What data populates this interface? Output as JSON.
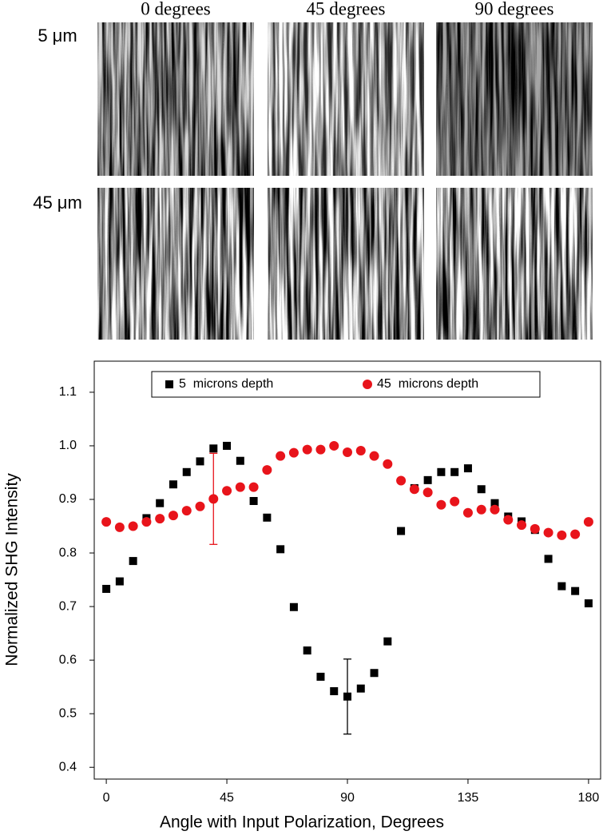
{
  "panels": {
    "columns": [
      "0 degrees",
      "45 degrees",
      "90 degrees"
    ],
    "rows": [
      "5 μm",
      "45 μm"
    ]
  },
  "chart_data": {
    "type": "scatter",
    "x_label": "Angle with Input Polarization, Degrees",
    "y_label": "Normalized SHG Intensity",
    "x": [
      0,
      5,
      10,
      15,
      20,
      25,
      30,
      35,
      40,
      45,
      50,
      55,
      60,
      65,
      70,
      75,
      80,
      85,
      90,
      95,
      100,
      105,
      110,
      115,
      120,
      125,
      130,
      135,
      140,
      145,
      150,
      155,
      160,
      165,
      170,
      175,
      180
    ],
    "series": [
      {
        "name": "5  microns depth",
        "color": "#000000",
        "marker": "square",
        "values": [
          0.733,
          0.747,
          0.785,
          0.865,
          0.893,
          0.928,
          0.951,
          0.971,
          0.995,
          1.0,
          0.972,
          0.897,
          0.866,
          0.807,
          0.699,
          0.618,
          0.569,
          0.542,
          0.532,
          0.547,
          0.576,
          0.635,
          0.841,
          0.921,
          0.936,
          0.951,
          0.951,
          0.958,
          0.919,
          0.893,
          0.868,
          0.859,
          0.843,
          0.789,
          0.738,
          0.729,
          0.706
        ],
        "errors": [
          null,
          null,
          null,
          null,
          null,
          null,
          null,
          null,
          null,
          null,
          null,
          null,
          null,
          null,
          null,
          null,
          null,
          null,
          0.07,
          null,
          null,
          null,
          null,
          null,
          null,
          null,
          null,
          null,
          null,
          null,
          null,
          null,
          null,
          null,
          null,
          null,
          null
        ]
      },
      {
        "name": "45  microns depth",
        "color": "#e8141b",
        "marker": "circle",
        "values": [
          0.858,
          0.848,
          0.85,
          0.858,
          0.864,
          0.87,
          0.879,
          0.887,
          0.901,
          0.916,
          0.923,
          0.923,
          0.955,
          0.981,
          0.987,
          0.993,
          0.993,
          1.0,
          0.988,
          0.991,
          0.981,
          0.966,
          0.935,
          0.919,
          0.913,
          0.89,
          0.896,
          0.875,
          0.881,
          0.881,
          0.862,
          0.852,
          0.845,
          0.838,
          0.833,
          0.835,
          0.858
        ],
        "errors": [
          null,
          null,
          null,
          null,
          null,
          null,
          null,
          null,
          0.085,
          null,
          null,
          null,
          null,
          null,
          null,
          null,
          null,
          null,
          null,
          null,
          null,
          null,
          null,
          null,
          null,
          null,
          null,
          null,
          null,
          null,
          null,
          null,
          null,
          null,
          null,
          null,
          null
        ]
      }
    ],
    "xlim": [
      -4.5,
      184.5
    ],
    "ylim": [
      0.378,
      1.158
    ],
    "xticks": [
      0,
      45,
      90,
      135,
      180
    ],
    "yticks": [
      0.4,
      0.5,
      0.6,
      0.7,
      0.8,
      0.9,
      {
        "value": 1,
        "label": "1.0"
      },
      1.1
    ],
    "legend": "top"
  }
}
